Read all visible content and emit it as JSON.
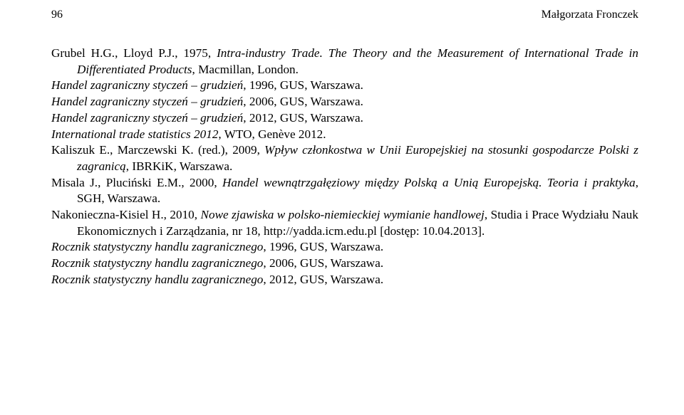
{
  "page_number": "96",
  "running_head": "Małgorzata Fronczek",
  "references": [
    {
      "html": "Grubel H.G., Lloyd P.J., 1975, <i>Intra-industry Trade. The Theory and the Measurement of International Trade in Differentiated Products</i>, Macmillan, London."
    },
    {
      "html": "<i>Handel zagraniczny styczeń – grudzień</i>, 1996, GUS, Warszawa."
    },
    {
      "html": "<i>Handel zagraniczny styczeń – grudzień</i>, 2006, GUS, Warszawa."
    },
    {
      "html": "<i>Handel zagraniczny styczeń – grudzień</i>, 2012, GUS, Warszawa."
    },
    {
      "html": "<i>International trade statistics 2012</i>, WTO, Genève 2012."
    },
    {
      "html": "Kaliszuk E., Marczewski K. (red.), 2009, <i>Wpływ członkostwa w Unii Europejskiej na stosunki gospodarcze Polski z zagranicą</i>, IBRKiK, Warszawa."
    },
    {
      "html": "Misala J., Pluciński E.M., 2000, <i>Handel wewnątrzgałęziowy między Polską a Unią Europejską. Teoria i praktyka</i>, SGH, Warszawa."
    },
    {
      "html": "Nakonieczna-Kisiel H., 2010, <i>Nowe zjawiska w polsko-niemieckiej wymianie handlowej</i>, Studia i Prace Wydziału Nauk Ekonomicznych i Zarządzania, nr 18, http://yadda.icm.edu.pl [dostęp: 10.04.2013]."
    },
    {
      "html": "<i>Rocznik statystyczny handlu zagranicznego</i>, 1996, GUS, Warszawa."
    },
    {
      "html": "<i>Rocznik statystyczny handlu zagranicznego</i>, 2006, GUS, Warszawa."
    },
    {
      "html": "<i>Rocznik statystyczny handlu zagranicznego</i>, 2012, GUS, Warszawa."
    }
  ]
}
